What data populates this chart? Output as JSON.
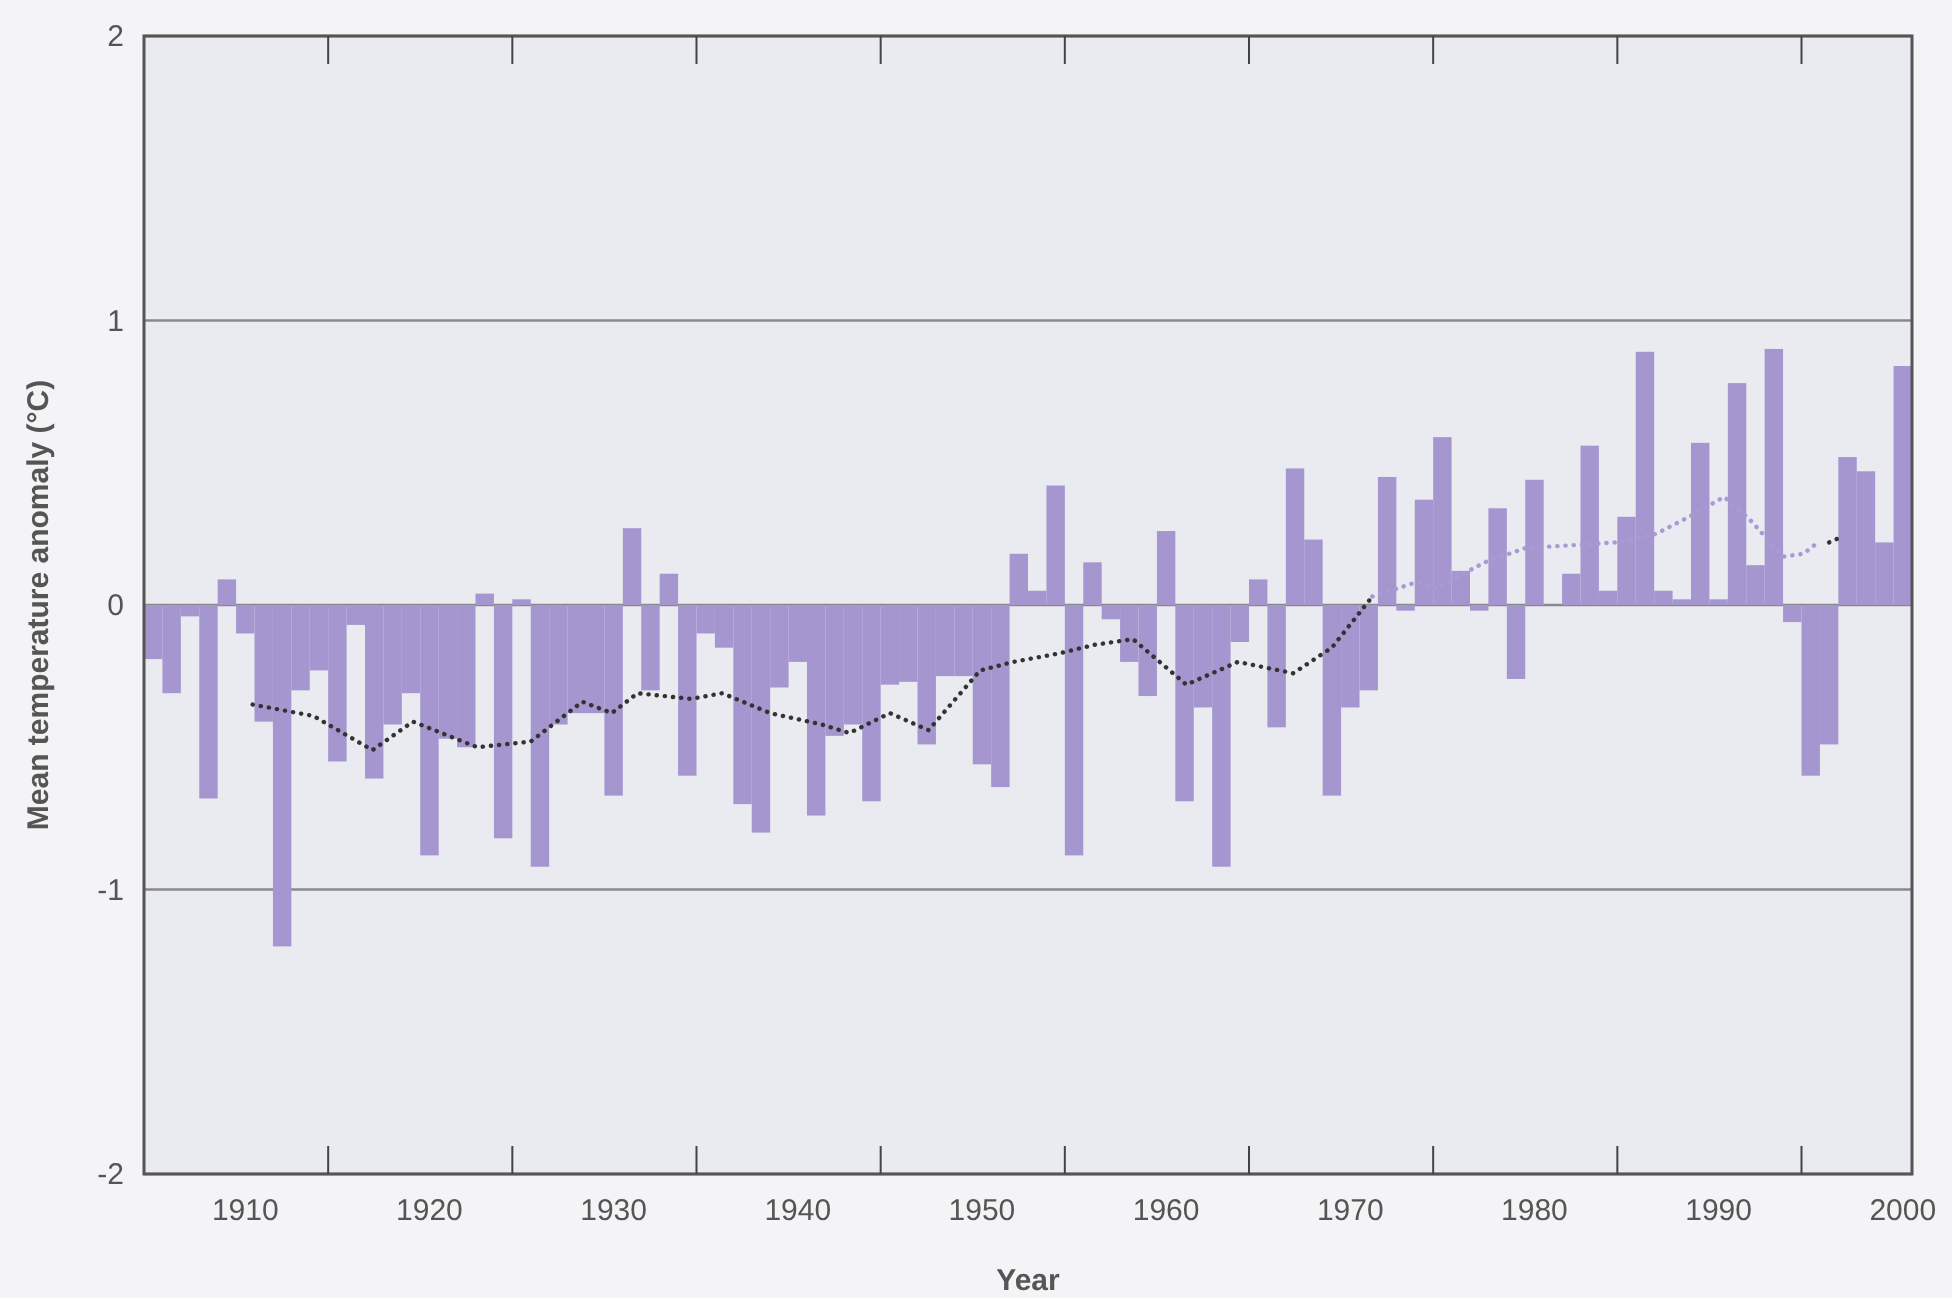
{
  "chart_data": {
    "type": "bar",
    "xlabel": "Year",
    "ylabel": "Mean temperature anomaly (°C)",
    "x": [
      1905,
      1906,
      1907,
      1908,
      1909,
      1910,
      1911,
      1912,
      1913,
      1914,
      1915,
      1916,
      1917,
      1918,
      1919,
      1920,
      1921,
      1922,
      1923,
      1924,
      1925,
      1926,
      1927,
      1928,
      1929,
      1930,
      1931,
      1932,
      1933,
      1934,
      1935,
      1936,
      1937,
      1938,
      1939,
      1940,
      1941,
      1942,
      1943,
      1944,
      1945,
      1946,
      1947,
      1948,
      1949,
      1950,
      1951,
      1952,
      1953,
      1954,
      1955,
      1956,
      1957,
      1958,
      1959,
      1960,
      1961,
      1962,
      1963,
      1964,
      1965,
      1966,
      1967,
      1968,
      1969,
      1970,
      1971,
      1972,
      1973,
      1974,
      1975,
      1976,
      1977,
      1978,
      1979,
      1980,
      1981,
      1982,
      1983,
      1984,
      1985,
      1986,
      1987,
      1988,
      1989,
      1990,
      1991,
      1992,
      1993,
      1994,
      1995,
      1996,
      1997,
      1998,
      1999,
      2000
    ],
    "series": [
      {
        "color": "#a596d0",
        "values": [
          -0.19,
          -0.31,
          -0.04,
          -0.68,
          0.09,
          -0.1,
          -0.41,
          -1.2,
          -0.3,
          -0.23,
          -0.55,
          -0.07,
          -0.61,
          -0.42,
          -0.31,
          -0.88,
          -0.47,
          -0.5,
          0.04,
          -0.82,
          0.02,
          -0.92,
          -0.42,
          -0.38,
          -0.38,
          -0.67,
          0.27,
          -0.3,
          0.11,
          -0.6,
          -0.1,
          -0.15,
          -0.7,
          -0.8,
          -0.29,
          -0.2,
          -0.74,
          -0.46,
          -0.42,
          -0.69,
          -0.28,
          -0.27,
          -0.49,
          -0.25,
          -0.25,
          -0.56,
          -0.64,
          0.18,
          0.05,
          0.42,
          -0.88,
          0.15,
          -0.05,
          -0.2,
          -0.32,
          0.26,
          -0.69,
          -0.36,
          -0.92,
          -0.13,
          0.09,
          -0.43,
          0.48,
          0.23,
          -0.67,
          -0.36,
          -0.3,
          0.45,
          -0.02,
          0.37,
          0.59,
          0.12,
          -0.02,
          0.34,
          -0.26,
          0.44,
          0,
          0.11,
          0.56,
          0.05,
          0.31,
          0.89,
          0.05,
          0.02,
          0.57,
          0.02,
          0.78,
          0.14,
          0.9,
          -0.06,
          -0.6,
          -0.49,
          0.52,
          0.47,
          0.22,
          0.84
        ]
      },
      {
        "type": "line",
        "color": "#333333",
        "line_style": "dotted",
        "x": [
          1910.4,
          1913.7,
          1916.9,
          1919.1,
          1922.6,
          1925.5,
          1928.3,
          1929.9,
          1931.3,
          1934.2,
          1935.9,
          1938.5,
          1941.3,
          1942.8,
          1945.0,
          1947.1,
          1949.9,
          1951.7,
          1954.2,
          1956.1,
          1958.2,
          1961.1,
          1963.9,
          1966.9,
          1969.0,
          1971.2
        ],
        "values": [
          -0.35,
          -0.39,
          -0.51,
          -0.41,
          -0.5,
          -0.48,
          -0.34,
          -0.38,
          -0.31,
          -0.33,
          -0.31,
          -0.38,
          -0.42,
          -0.45,
          -0.38,
          -0.44,
          -0.23,
          -0.2,
          -0.17,
          -0.14,
          -0.12,
          -0.28,
          -0.2,
          -0.24,
          -0.15,
          0.03
        ]
      },
      {
        "type": "line",
        "color": "#a99ad6",
        "line_style": "dotted",
        "x": [
          1971.2,
          1973.6,
          1974.7,
          1977.3,
          1979.5,
          1982.0,
          1984.4,
          1986.6,
          1988.4,
          1990.3,
          1991.7,
          1993.5,
          1994.6,
          1995.2
        ],
        "values": [
          0.03,
          0.08,
          0.06,
          0.15,
          0.2,
          0.21,
          0.22,
          0.25,
          0.31,
          0.38,
          0.3,
          0.17,
          0.18,
          0.21
        ]
      },
      {
        "type": "line",
        "color": "#333333",
        "line_style": "dotted",
        "x": [
          1996.0,
          1996.7
        ],
        "values": [
          0.22,
          0.24
        ]
      }
    ],
    "xlim": [
      1904.5,
      2000.5
    ],
    "xticks": [
      {
        "value": 1914.5,
        "label": null
      },
      {
        "value": 1924.5,
        "label": null
      },
      {
        "value": 1934.5,
        "label": null
      },
      {
        "value": 1944.5,
        "label": null
      },
      {
        "value": 1954.5,
        "label": null
      },
      {
        "value": 1964.5,
        "label": null
      },
      {
        "value": 1974.5,
        "label": null
      },
      {
        "value": 1984.5,
        "label": null
      },
      {
        "value": 1994.5,
        "label": null
      },
      1910,
      1920,
      1930,
      1940,
      1950,
      1960,
      1970,
      1980,
      1990,
      2000
    ],
    "ylim": [
      -2,
      2
    ],
    "yticks": [
      -2,
      -1,
      0,
      1,
      2
    ],
    "grid": "y",
    "marker": "none"
  }
}
